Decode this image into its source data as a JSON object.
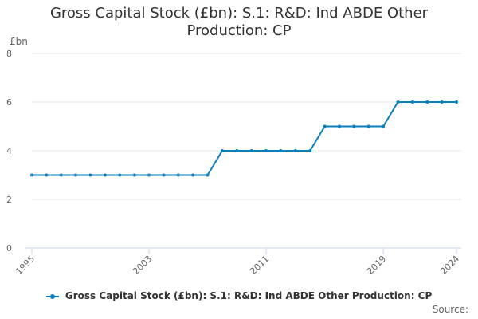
{
  "chart_data": {
    "type": "line",
    "title_lines": [
      "Gross Capital Stock (£bn): S.1: R&D: Ind ABDE Other",
      "Production: CP"
    ],
    "ylabel": "£bn",
    "xlabel": "",
    "x": [
      1995,
      1996,
      1997,
      1998,
      1999,
      2000,
      2001,
      2002,
      2003,
      2004,
      2005,
      2006,
      2007,
      2008,
      2009,
      2010,
      2011,
      2012,
      2013,
      2014,
      2015,
      2016,
      2017,
      2018,
      2019,
      2020,
      2021,
      2022,
      2023,
      2024
    ],
    "series": [
      {
        "name": "Gross Capital Stock (£bn): S.1: R&D: Ind ABDE Other Production: CP",
        "values": [
          3,
          3,
          3,
          3,
          3,
          3,
          3,
          3,
          3,
          3,
          3,
          3,
          3,
          4,
          4,
          4,
          4,
          4,
          4,
          4,
          5,
          5,
          5,
          5,
          5,
          6,
          6,
          6,
          6,
          6
        ],
        "color": "#0b7fba"
      }
    ],
    "xlim": [
      1995,
      2024
    ],
    "ylim": [
      0,
      8
    ],
    "x_ticks": [
      1995,
      2003,
      2011,
      2019,
      2024
    ],
    "y_ticks": [
      0,
      2,
      4,
      6,
      8
    ],
    "grid": "horizontal",
    "legend_position": "bottom"
  },
  "source_label": "Source:"
}
